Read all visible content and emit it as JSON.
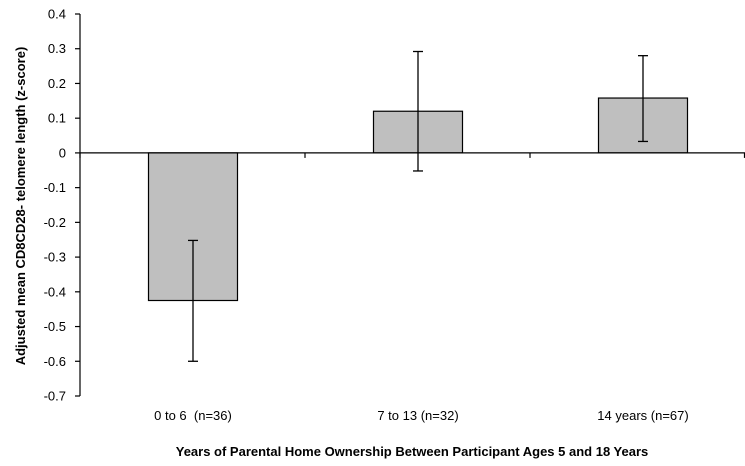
{
  "chart_data": {
    "type": "bar",
    "categories": [
      "0 to 6  (n=36)",
      "7 to 13 (n=32)",
      "14 years (n=67)"
    ],
    "values": [
      -0.425,
      0.12,
      0.158
    ],
    "error_low": [
      -0.6,
      -0.052,
      0.033
    ],
    "error_high": [
      -0.252,
      0.292,
      0.28
    ],
    "xlabel": "Years of Parental Home Ownership Between Participant Ages 5 and 18 Years",
    "ylabel": "Adjusted  mean CD8CD28- telomere length (z-score)",
    "ylim": [
      -0.7,
      0.4
    ],
    "yticks": [
      "0.4",
      "0.3",
      "0.2",
      "0.1",
      "0",
      "-0.1",
      "-0.2",
      "-0.3",
      "-0.4",
      "-0.5",
      "-0.6",
      "-0.7"
    ],
    "ytick_values": [
      0.4,
      0.3,
      0.2,
      0.1,
      0,
      -0.1,
      -0.2,
      -0.3,
      -0.4,
      -0.5,
      -0.6,
      -0.7
    ],
    "grid": false,
    "legend": "none",
    "colors": {
      "bar_fill": "#bfbfbf",
      "bar_stroke": "#000000",
      "axis": "#000000"
    }
  }
}
